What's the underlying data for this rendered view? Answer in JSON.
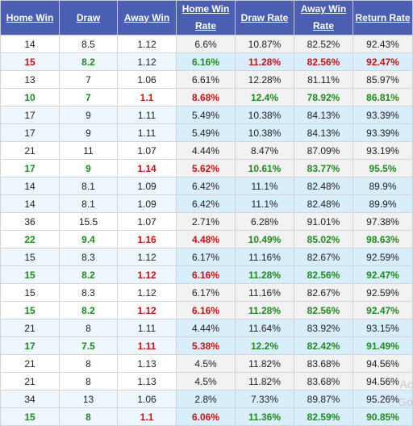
{
  "headers": [
    "Home Win",
    "Draw",
    "Away Win",
    "Home Win Rate",
    "Draw Rate",
    "Away Win Rate",
    "Return Rate"
  ],
  "rows": [
    {
      "tint": false,
      "hl": "none",
      "cells": [
        "14",
        "8.5",
        "1.12",
        "6.6%",
        "10.87%",
        "82.52%",
        "92.43%"
      ]
    },
    {
      "tint": true,
      "hl": "red",
      "cells": [
        "15",
        "8.2",
        "1.12",
        "6.16%",
        "11.28%",
        "82.56%",
        "92.47%"
      ]
    },
    {
      "tint": false,
      "hl": "none",
      "cells": [
        "13",
        "7",
        "1.06",
        "6.61%",
        "12.28%",
        "81.11%",
        "85.97%"
      ]
    },
    {
      "tint": false,
      "hl": "green",
      "cells": [
        "10",
        "7",
        "1.1",
        "8.68%",
        "12.4%",
        "78.92%",
        "86.81%"
      ]
    },
    {
      "tint": true,
      "hl": "none",
      "cells": [
        "17",
        "9",
        "1.11",
        "5.49%",
        "10.38%",
        "84.13%",
        "93.39%"
      ]
    },
    {
      "tint": true,
      "hl": "none",
      "cells": [
        "17",
        "9",
        "1.11",
        "5.49%",
        "10.38%",
        "84.13%",
        "93.39%"
      ]
    },
    {
      "tint": false,
      "hl": "none",
      "cells": [
        "21",
        "11",
        "1.07",
        "4.44%",
        "8.47%",
        "87.09%",
        "93.19%"
      ]
    },
    {
      "tint": false,
      "hl": "green",
      "cells": [
        "17",
        "9",
        "1.14",
        "5.62%",
        "10.61%",
        "83.77%",
        "95.5%"
      ]
    },
    {
      "tint": true,
      "hl": "none",
      "cells": [
        "14",
        "8.1",
        "1.09",
        "6.42%",
        "11.1%",
        "82.48%",
        "89.9%"
      ]
    },
    {
      "tint": true,
      "hl": "none",
      "cells": [
        "14",
        "8.1",
        "1.09",
        "6.42%",
        "11.1%",
        "82.48%",
        "89.9%"
      ]
    },
    {
      "tint": false,
      "hl": "none",
      "cells": [
        "36",
        "15.5",
        "1.07",
        "2.71%",
        "6.28%",
        "91.01%",
        "97.38%"
      ]
    },
    {
      "tint": false,
      "hl": "green",
      "cells": [
        "22",
        "9.4",
        "1.16",
        "4.48%",
        "10.49%",
        "85.02%",
        "98.63%"
      ]
    },
    {
      "tint": true,
      "hl": "none",
      "cells": [
        "15",
        "8.3",
        "1.12",
        "6.17%",
        "11.16%",
        "82.67%",
        "92.59%"
      ]
    },
    {
      "tint": true,
      "hl": "green",
      "cells": [
        "15",
        "8.2",
        "1.12",
        "6.16%",
        "11.28%",
        "82.56%",
        "92.47%"
      ]
    },
    {
      "tint": false,
      "hl": "none",
      "cells": [
        "15",
        "8.3",
        "1.12",
        "6.17%",
        "11.16%",
        "82.67%",
        "92.59%"
      ]
    },
    {
      "tint": false,
      "hl": "green",
      "cells": [
        "15",
        "8.2",
        "1.12",
        "6.16%",
        "11.28%",
        "82.56%",
        "92.47%"
      ]
    },
    {
      "tint": true,
      "hl": "none",
      "cells": [
        "21",
        "8",
        "1.11",
        "4.44%",
        "11.64%",
        "83.92%",
        "93.15%"
      ]
    },
    {
      "tint": true,
      "hl": "green",
      "cells": [
        "17",
        "7.5",
        "1.11",
        "5.38%",
        "12.2%",
        "82.42%",
        "91.49%"
      ]
    },
    {
      "tint": false,
      "hl": "none",
      "cells": [
        "21",
        "8",
        "1.13",
        "4.5%",
        "11.82%",
        "83.68%",
        "94.56%"
      ]
    },
    {
      "tint": false,
      "hl": "none",
      "cells": [
        "21",
        "8",
        "1.13",
        "4.5%",
        "11.82%",
        "83.68%",
        "94.56%"
      ]
    },
    {
      "tint": true,
      "hl": "none",
      "cells": [
        "34",
        "13",
        "1.06",
        "2.8%",
        "7.33%",
        "89.87%",
        "95.26%"
      ]
    },
    {
      "tint": true,
      "hl": "green",
      "cells": [
        "15",
        "8",
        "1.1",
        "6.06%",
        "11.36%",
        "82.59%",
        "90.85%"
      ]
    }
  ],
  "watermark": [
    "Ac",
    "Go"
  ],
  "colors": {
    "header_bg": "#4a5fb2",
    "green_text": "#1f8a1f",
    "red_text": "#cc1111"
  }
}
